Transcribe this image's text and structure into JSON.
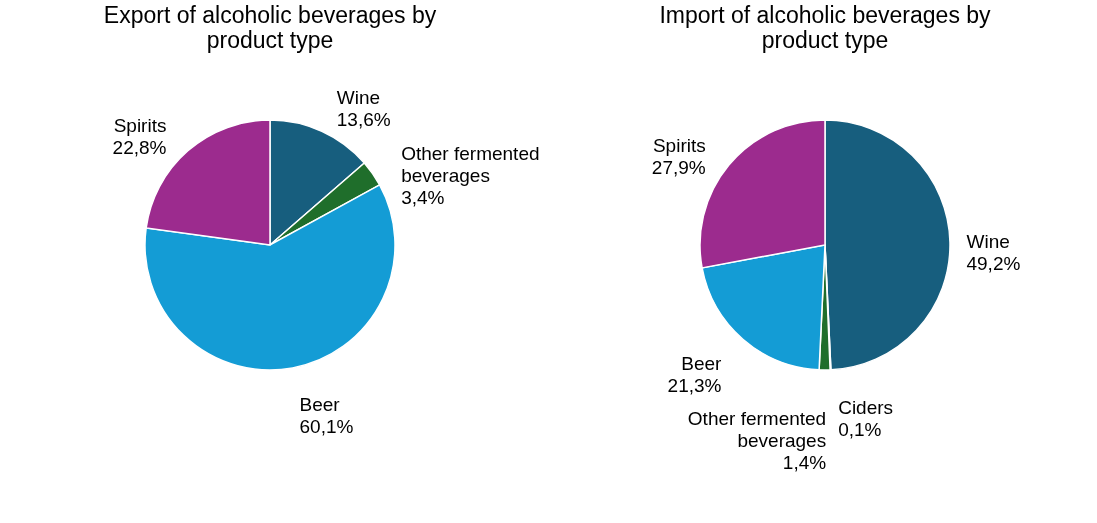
{
  "chart_data": [
    {
      "type": "pie",
      "title": "Export of alcoholic beverages by product type",
      "categories": [
        "Wine",
        "Other fermented beverages",
        "Beer",
        "Spirits"
      ],
      "values": [
        13.6,
        3.4,
        60.1,
        22.8
      ],
      "colors": [
        "#175e7e",
        "#1f6e2b",
        "#149cd5",
        "#9c2b8e"
      ],
      "value_labels": [
        "13,6%",
        "3,4%",
        "60,1%",
        "22,8%"
      ]
    },
    {
      "type": "pie",
      "title": "Import of alcoholic beverages by product type",
      "categories": [
        "Wine",
        "Ciders",
        "Other fermented beverages",
        "Beer",
        "Spirits"
      ],
      "values": [
        49.2,
        0.1,
        1.4,
        21.3,
        27.9
      ],
      "colors": [
        "#175e7e",
        "#3a7a2a",
        "#1f6e2b",
        "#149cd5",
        "#9c2b8e"
      ],
      "value_labels": [
        "49,2%",
        "0,1%",
        "1,4%",
        "21,3%",
        "27,9%"
      ]
    }
  ]
}
